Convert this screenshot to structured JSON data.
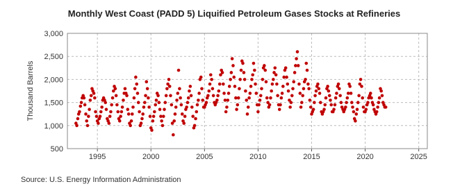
{
  "chart_data": {
    "type": "scatter",
    "title": "Monthly West Coast (PADD 5) Liquified Petroleum Gases Stocks at Refineries",
    "y_label": "Thousand Barrels",
    "source": "Source: U.S. Energy Information Administration",
    "xlim": [
      1992.2,
      2025.8
    ],
    "xticks": [
      1995,
      2000,
      2005,
      2010,
      2015,
      2020,
      2025
    ],
    "ylim": [
      500,
      3000
    ],
    "yticks": [
      500,
      {
        "value": 1000,
        "label": "1,000"
      },
      {
        "value": 1500,
        "label": "1,500"
      },
      {
        "value": 2000,
        "label": "2,000"
      },
      {
        "value": 2500,
        "label": "2,500"
      },
      {
        "value": 3000,
        "label": "3,000"
      }
    ],
    "grid": true,
    "x": [
      1993,
      1993.08,
      1993.17,
      1993.25,
      1993.33,
      1993.42,
      1993.5,
      1993.58,
      1993.67,
      1993.75,
      1993.83,
      1993.92,
      1994,
      1994.08,
      1994.17,
      1994.25,
      1994.33,
      1994.42,
      1994.5,
      1994.58,
      1994.67,
      1994.75,
      1994.83,
      1994.92,
      1995,
      1995.08,
      1995.17,
      1995.25,
      1995.33,
      1995.42,
      1995.5,
      1995.58,
      1995.67,
      1995.75,
      1995.83,
      1995.92,
      1996,
      1996.08,
      1996.17,
      1996.25,
      1996.33,
      1996.42,
      1996.5,
      1996.58,
      1996.67,
      1996.75,
      1996.83,
      1996.92,
      1997,
      1997.08,
      1997.17,
      1997.25,
      1997.33,
      1997.42,
      1997.5,
      1997.58,
      1997.67,
      1997.75,
      1997.83,
      1997.92,
      1998,
      1998.08,
      1998.17,
      1998.25,
      1998.33,
      1998.42,
      1998.5,
      1998.58,
      1998.67,
      1998.75,
      1998.83,
      1998.92,
      1999,
      1999.08,
      1999.17,
      1999.25,
      1999.33,
      1999.42,
      1999.5,
      1999.58,
      1999.67,
      1999.75,
      1999.83,
      1999.92,
      2000,
      2000.08,
      2000.17,
      2000.25,
      2000.33,
      2000.42,
      2000.5,
      2000.58,
      2000.67,
      2000.75,
      2000.83,
      2000.92,
      2001,
      2001.08,
      2001.17,
      2001.25,
      2001.33,
      2001.42,
      2001.5,
      2001.58,
      2001.67,
      2001.75,
      2001.83,
      2001.92,
      2002,
      2002.08,
      2002.17,
      2002.25,
      2002.33,
      2002.42,
      2002.5,
      2002.58,
      2002.67,
      2002.75,
      2002.83,
      2002.92,
      2003,
      2003.08,
      2003.17,
      2003.25,
      2003.33,
      2003.42,
      2003.5,
      2003.58,
      2003.67,
      2003.75,
      2003.83,
      2003.92,
      2004,
      2004.08,
      2004.17,
      2004.25,
      2004.33,
      2004.42,
      2004.5,
      2004.58,
      2004.67,
      2004.75,
      2004.83,
      2004.92,
      2005,
      2005.08,
      2005.17,
      2005.25,
      2005.33,
      2005.42,
      2005.5,
      2005.58,
      2005.67,
      2005.75,
      2005.83,
      2005.92,
      2006,
      2006.08,
      2006.17,
      2006.25,
      2006.33,
      2006.42,
      2006.5,
      2006.58,
      2006.67,
      2006.75,
      2006.83,
      2006.92,
      2007,
      2007.08,
      2007.17,
      2007.25,
      2007.33,
      2007.42,
      2007.5,
      2007.58,
      2007.67,
      2007.75,
      2007.83,
      2007.92,
      2008,
      2008.08,
      2008.17,
      2008.25,
      2008.33,
      2008.42,
      2008.5,
      2008.58,
      2008.67,
      2008.75,
      2008.83,
      2008.92,
      2009,
      2009.08,
      2009.17,
      2009.25,
      2009.33,
      2009.42,
      2009.5,
      2009.58,
      2009.67,
      2009.75,
      2009.83,
      2009.92,
      2010,
      2010.08,
      2010.17,
      2010.25,
      2010.33,
      2010.42,
      2010.5,
      2010.58,
      2010.67,
      2010.75,
      2010.83,
      2010.92,
      2011,
      2011.08,
      2011.17,
      2011.25,
      2011.33,
      2011.42,
      2011.5,
      2011.58,
      2011.67,
      2011.75,
      2011.83,
      2011.92,
      2012,
      2012.08,
      2012.17,
      2012.25,
      2012.33,
      2012.42,
      2012.5,
      2012.58,
      2012.67,
      2012.75,
      2012.83,
      2012.92,
      2013,
      2013.08,
      2013.17,
      2013.25,
      2013.33,
      2013.42,
      2013.5,
      2013.58,
      2013.67,
      2013.75,
      2013.83,
      2013.92,
      2014,
      2014.08,
      2014.17,
      2014.25,
      2014.33,
      2014.42,
      2014.5,
      2014.58,
      2014.67,
      2014.75,
      2014.83,
      2014.92,
      2015,
      2015.08,
      2015.17,
      2015.25,
      2015.33,
      2015.42,
      2015.5,
      2015.58,
      2015.67,
      2015.75,
      2015.83,
      2015.92,
      2016,
      2016.08,
      2016.17,
      2016.25,
      2016.33,
      2016.42,
      2016.5,
      2016.58,
      2016.67,
      2016.75,
      2016.83,
      2016.92,
      2017,
      2017.08,
      2017.17,
      2017.25,
      2017.33,
      2017.42,
      2017.5,
      2017.58,
      2017.67,
      2017.75,
      2017.83,
      2017.92,
      2018,
      2018.08,
      2018.17,
      2018.25,
      2018.33,
      2018.42,
      2018.5,
      2018.58,
      2018.67,
      2018.75,
      2018.83,
      2018.92,
      2019,
      2019.08,
      2019.17,
      2019.25,
      2019.33,
      2019.42,
      2019.5,
      2019.58,
      2019.67,
      2019.75,
      2019.83,
      2019.92,
      2020,
      2020.08,
      2020.17,
      2020.25,
      2020.33,
      2020.42,
      2020.5,
      2020.58,
      2020.67,
      2020.75,
      2020.83,
      2020.92,
      2021,
      2021.08,
      2021.17,
      2021.25,
      2021.33,
      2021.42,
      2021.5,
      2021.58,
      2021.67,
      2021.75,
      2021.83,
      2021.92
    ],
    "series": [
      {
        "color": "#c00000",
        "values": [
          1050,
          1000,
          1150,
          1250,
          1300,
          1420,
          1500,
          1600,
          1650,
          1600,
          1450,
          1250,
          1100,
          1000,
          1200,
          1350,
          1550,
          1650,
          1800,
          1750,
          1700,
          1600,
          1300,
          1200,
          1100,
          1050,
          1150,
          1200,
          1300,
          1400,
          1550,
          1600,
          1550,
          1500,
          1350,
          1150,
          1100,
          1050,
          1200,
          1300,
          1450,
          1600,
          1750,
          1850,
          1800,
          1650,
          1450,
          1300,
          1150,
          1100,
          1200,
          1300,
          1400,
          1550,
          1700,
          1800,
          1700,
          1650,
          1350,
          1250,
          1050,
          1000,
          1100,
          1250,
          1400,
          1600,
          1800,
          2050,
          1900,
          1700,
          1500,
          1300,
          1000,
          1050,
          1150,
          1250,
          1400,
          1500,
          1650,
          1950,
          1800,
          1600,
          1400,
          1200,
          950,
          900,
          1100,
          1200,
          1300,
          1450,
          1550,
          1700,
          1650,
          1500,
          1350,
          1200,
          1100,
          1000,
          1200,
          1350,
          1500,
          1650,
          1800,
          1900,
          2000,
          1850,
          1650,
          1450,
          1050,
          800,
          1100,
          1250,
          1400,
          1550,
          1700,
          2200,
          1800,
          1600,
          1450,
          1250,
          1100,
          1050,
          1200,
          1350,
          1400,
          1500,
          1600,
          1750,
          1850,
          1650,
          1400,
          1200,
          950,
          1000,
          1150,
          1300,
          1450,
          1550,
          1700,
          2000,
          2050,
          1800,
          1550,
          1400,
          1400,
          1450,
          1500,
          1600,
          1650,
          1750,
          1900,
          2100,
          2000,
          1800,
          1650,
          1500,
          1450,
          1500,
          1550,
          1650,
          1750,
          1900,
          2100,
          2200,
          2150,
          1900,
          1700,
          1550,
          1300,
          1400,
          1550,
          1700,
          1850,
          2000,
          2150,
          2450,
          2300,
          2050,
          1850,
          1600,
          1350,
          1450,
          1600,
          1800,
          2000,
          2200,
          2400,
          2350,
          2150,
          2000,
          1750,
          1550,
          1250,
          1400,
          1600,
          1700,
          1850,
          2000,
          2100,
          2350,
          2200,
          1900,
          1700,
          1450,
          1300,
          1450,
          1550,
          1650,
          1800,
          2000,
          2250,
          2300,
          2200,
          1950,
          1600,
          1500,
          1400,
          1450,
          1600,
          1750,
          1900,
          2000,
          2150,
          2250,
          2100,
          1900,
          1650,
          1450,
          1350,
          1450,
          1600,
          1700,
          1850,
          2050,
          2200,
          2250,
          2050,
          1900,
          1750,
          1550,
          1400,
          1500,
          1650,
          1800,
          1950,
          2150,
          2300,
          2450,
          2600,
          2300,
          1900,
          1700,
          1400,
          1500,
          1650,
          1800,
          1950,
          2000,
          2350,
          2200,
          1900,
          1800,
          1550,
          1400,
          1250,
          1300,
          1350,
          1500,
          1650,
          1750,
          1850,
          1900,
          1800,
          1700,
          1500,
          1300,
          1250,
          1300,
          1350,
          1450,
          1600,
          1800,
          1850,
          1750,
          1650,
          1550,
          1450,
          1300,
          1300,
          1350,
          1450,
          1600,
          1700,
          1850,
          1900,
          1800,
          1650,
          1500,
          1400,
          1350,
          1300,
          1350,
          1400,
          1500,
          1600,
          1700,
          1900,
          1850,
          1700,
          1500,
          1400,
          1300,
          1150,
          1100,
          1250,
          1350,
          1500,
          1650,
          1900,
          2000,
          1850,
          1600,
          1400,
          1300,
          1300,
          1350,
          1450,
          1500,
          1600,
          1650,
          1700,
          1600,
          1500,
          1450,
          1350,
          1300,
          1250,
          1300,
          1400,
          1500,
          1600,
          1800,
          1750,
          1650,
          1500,
          1450,
          1400,
          1400
        ]
      }
    ]
  }
}
